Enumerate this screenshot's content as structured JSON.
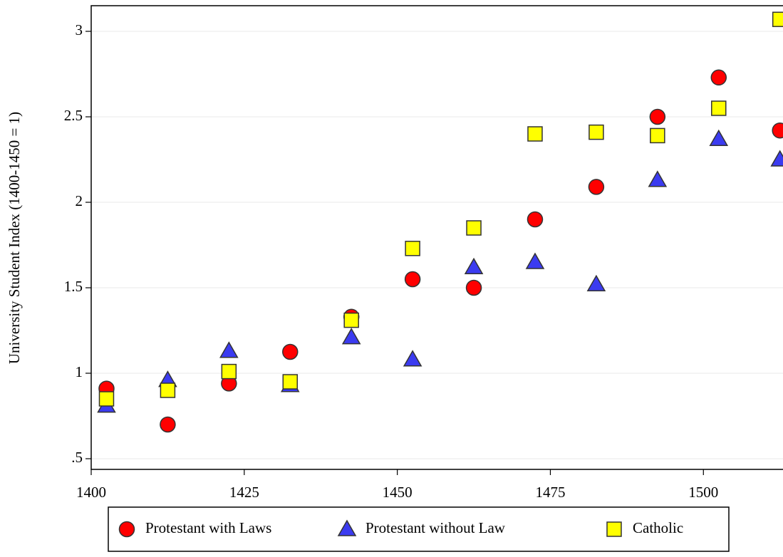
{
  "chart_data": {
    "type": "scatter",
    "y_label": "University Student Index (1400-1450 = 1)",
    "xlim": [
      1400,
      1513
    ],
    "ylim": [
      0.4375,
      3.15
    ],
    "xticks": [
      1400,
      1425,
      1450,
      1475,
      1500
    ],
    "yticks": [
      {
        "value": 0.5,
        "label": ".5"
      },
      1,
      1.5,
      2,
      2.5,
      3
    ],
    "grid": true,
    "legend": "bottom",
    "series": [
      {
        "name": "Protestant with Laws",
        "color": "#ff0000",
        "marker": "circle",
        "x": [
          1402.5,
          1412.5,
          1422.5,
          1432.5,
          1442.5,
          1452.5,
          1462.5,
          1472.5,
          1482.5,
          1492.5,
          1502.5,
          1512.5
        ],
        "values": [
          0.91,
          0.7,
          0.94,
          1.125,
          1.33,
          1.55,
          1.5,
          1.9,
          2.09,
          2.5,
          2.73,
          2.42
        ]
      },
      {
        "name": "Protestant without Law",
        "color": "#3b3bf0",
        "marker": "triangle",
        "x": [
          1402.5,
          1412.5,
          1422.5,
          1432.5,
          1442.5,
          1452.5,
          1462.5,
          1472.5,
          1482.5,
          1492.5,
          1502.5,
          1512.5
        ],
        "values": [
          0.81,
          0.96,
          1.13,
          0.93,
          1.21,
          1.08,
          1.62,
          1.65,
          1.52,
          2.13,
          2.37,
          2.25
        ]
      },
      {
        "name": "Catholic",
        "color": "#ffff00",
        "marker": "square",
        "x": [
          1402.5,
          1412.5,
          1422.5,
          1432.5,
          1442.5,
          1452.5,
          1462.5,
          1472.5,
          1482.5,
          1492.5,
          1502.5,
          1512.5
        ],
        "values": [
          0.85,
          0.9,
          1.01,
          0.95,
          1.31,
          1.73,
          1.85,
          2.4,
          2.41,
          2.39,
          2.55,
          3.07
        ]
      }
    ]
  }
}
